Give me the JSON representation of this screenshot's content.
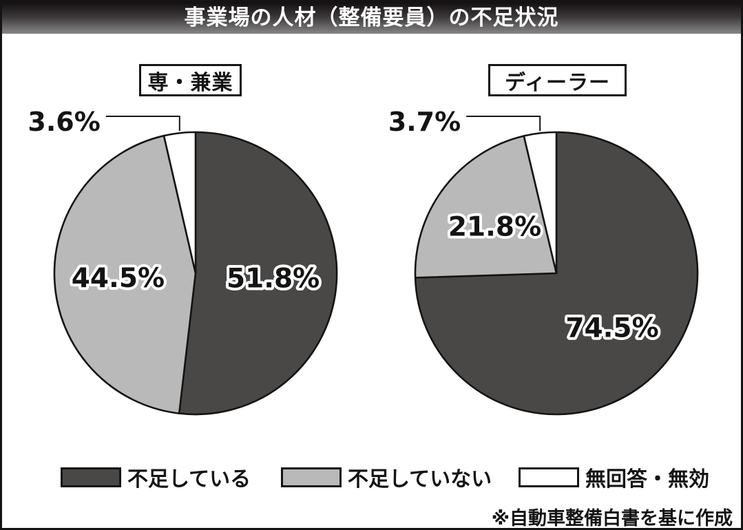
{
  "header": {
    "title": "事業場の人材（整備要員）の不足状況"
  },
  "chart_data": [
    {
      "type": "pie",
      "title": "専・兼業",
      "labels": [
        "不足している",
        "不足していない",
        "無回答・無効"
      ],
      "values": [
        51.8,
        44.5,
        3.6
      ],
      "display_labels": [
        "51.8%",
        "44.5%",
        "3.6%"
      ],
      "colors": [
        "#4a4847",
        "#b9b9b9",
        "#ffffff"
      ],
      "start_angle": "top",
      "direction": "clockwise"
    },
    {
      "type": "pie",
      "title": "ディーラー",
      "labels": [
        "不足している",
        "不足していない",
        "無回答・無効"
      ],
      "values": [
        74.5,
        21.8,
        3.7
      ],
      "display_labels": [
        "74.5%",
        "21.8%",
        "3.7%"
      ],
      "colors": [
        "#4a4847",
        "#b9b9b9",
        "#ffffff"
      ],
      "start_angle": "top",
      "direction": "clockwise"
    }
  ],
  "legend": {
    "items": [
      {
        "label": "不足している",
        "color": "#4a4847"
      },
      {
        "label": "不足していない",
        "color": "#b9b9b9"
      },
      {
        "label": "無回答・無効",
        "color": "#ffffff"
      }
    ]
  },
  "footer": {
    "note": "※自動車整備白書を基に作成"
  }
}
